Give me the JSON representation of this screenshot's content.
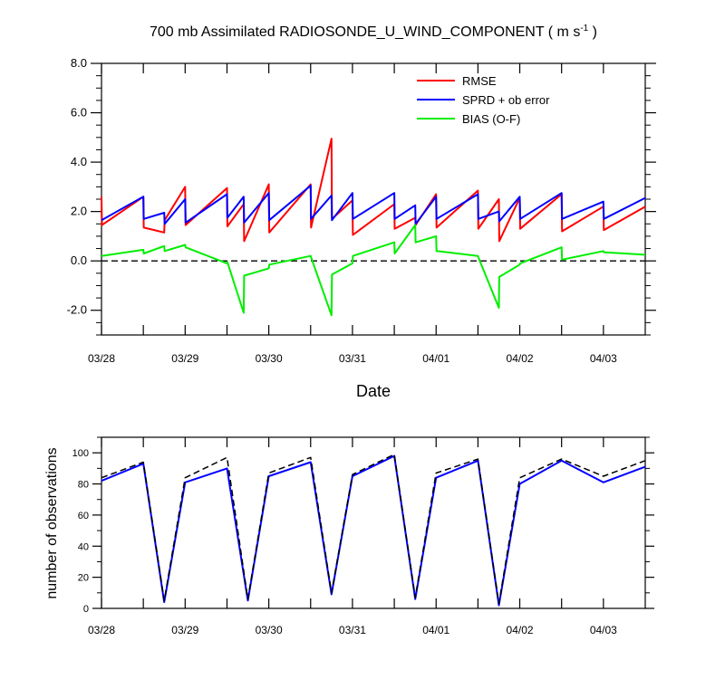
{
  "chart_data": [
    {
      "type": "line",
      "title": "700 mb Assimilated RADIOSONDE_U_WIND_COMPONENT ( m s",
      "title_unit_sup": "-1",
      "title_close": " )",
      "xlabel": "Date",
      "ylabel": "",
      "ylim": [
        -3,
        8
      ],
      "xlim": [
        0,
        6.5
      ],
      "x_ticks": [
        {
          "x": 0,
          "label": "03/28"
        },
        {
          "x": 1,
          "label": "03/29"
        },
        {
          "x": 2,
          "label": "03/30"
        },
        {
          "x": 3,
          "label": "03/31"
        },
        {
          "x": 4,
          "label": "04/01"
        },
        {
          "x": 5,
          "label": "04/02"
        },
        {
          "x": 6,
          "label": "04/03"
        }
      ],
      "y_ticks": [
        {
          "y": -2,
          "label": "-2.0"
        },
        {
          "y": 0,
          "label": "0.0"
        },
        {
          "y": 2,
          "label": "2.0"
        },
        {
          "y": 4,
          "label": "4.0"
        },
        {
          "y": 6,
          "label": "6.0"
        },
        {
          "y": 8,
          "label": "8.0"
        }
      ],
      "zero_line": true,
      "legend_position": "top-right",
      "series": [
        {
          "name": "RMSE",
          "color": "#ff0000",
          "points": [
            [
              0,
              2.6
            ],
            [
              0.005,
              1.45
            ],
            [
              0.5,
              2.6
            ],
            [
              0.505,
              1.35
            ],
            [
              0.75,
              1.15
            ],
            [
              0.755,
              1.65
            ],
            [
              1,
              3.0
            ],
            [
              1.005,
              1.45
            ],
            [
              1.5,
              2.95
            ],
            [
              1.505,
              1.4
            ],
            [
              1.7,
              2.3
            ],
            [
              1.705,
              0.8
            ],
            [
              2,
              3.1
            ],
            [
              2.005,
              1.15
            ],
            [
              2.5,
              3.1
            ],
            [
              2.505,
              1.35
            ],
            [
              2.75,
              4.95
            ],
            [
              2.755,
              1.7
            ],
            [
              3,
              2.45
            ],
            [
              3.005,
              1.05
            ],
            [
              3.5,
              2.3
            ],
            [
              3.505,
              1.3
            ],
            [
              3.75,
              1.75
            ],
            [
              3.755,
              1.45
            ],
            [
              4,
              2.7
            ],
            [
              4.005,
              1.35
            ],
            [
              4.5,
              2.85
            ],
            [
              4.505,
              1.3
            ],
            [
              4.75,
              2.5
            ],
            [
              4.755,
              0.8
            ],
            [
              5,
              2.55
            ],
            [
              5.005,
              1.3
            ],
            [
              5.5,
              2.7
            ],
            [
              5.505,
              1.2
            ],
            [
              6,
              2.2
            ],
            [
              6.005,
              1.25
            ],
            [
              6.5,
              2.2
            ]
          ]
        },
        {
          "name": "SPRD + ob error",
          "color": "#0000ff",
          "points": [
            [
              0,
              1.65
            ],
            [
              0.5,
              2.6
            ],
            [
              0.505,
              1.7
            ],
            [
              0.75,
              1.95
            ],
            [
              0.755,
              1.5
            ],
            [
              1,
              2.5
            ],
            [
              1.005,
              1.55
            ],
            [
              1.5,
              2.7
            ],
            [
              1.505,
              1.75
            ],
            [
              1.7,
              2.6
            ],
            [
              1.705,
              1.55
            ],
            [
              2,
              2.75
            ],
            [
              2.005,
              1.65
            ],
            [
              2.5,
              3.05
            ],
            [
              2.505,
              1.7
            ],
            [
              2.75,
              2.65
            ],
            [
              2.755,
              1.65
            ],
            [
              3,
              2.75
            ],
            [
              3.005,
              1.7
            ],
            [
              3.5,
              2.75
            ],
            [
              3.505,
              1.7
            ],
            [
              3.75,
              2.25
            ],
            [
              3.755,
              1.5
            ],
            [
              4,
              2.6
            ],
            [
              4.005,
              1.7
            ],
            [
              4.5,
              2.7
            ],
            [
              4.505,
              1.7
            ],
            [
              4.75,
              2.0
            ],
            [
              4.755,
              1.6
            ],
            [
              5,
              2.6
            ],
            [
              5.005,
              1.7
            ],
            [
              5.5,
              2.75
            ],
            [
              5.505,
              1.7
            ],
            [
              6,
              2.4
            ],
            [
              6.005,
              1.7
            ],
            [
              6.5,
              2.55
            ]
          ]
        },
        {
          "name": "BIAS (O-F)",
          "color": "#00ee00",
          "points": [
            [
              0,
              0.2
            ],
            [
              0.5,
              0.45
            ],
            [
              0.505,
              0.3
            ],
            [
              0.75,
              0.6
            ],
            [
              0.755,
              0.4
            ],
            [
              1,
              0.65
            ],
            [
              1.005,
              0.55
            ],
            [
              1.5,
              -0.1
            ],
            [
              1.505,
              -0.05
            ],
            [
              1.7,
              -2.1
            ],
            [
              1.705,
              -0.6
            ],
            [
              2,
              -0.3
            ],
            [
              2.005,
              -0.15
            ],
            [
              2.5,
              0.2
            ],
            [
              2.505,
              0.15
            ],
            [
              2.75,
              -2.2
            ],
            [
              2.755,
              -0.55
            ],
            [
              3,
              -0.1
            ],
            [
              3.005,
              0.2
            ],
            [
              3.5,
              0.75
            ],
            [
              3.505,
              0.3
            ],
            [
              3.75,
              1.45
            ],
            [
              3.755,
              0.75
            ],
            [
              4,
              1.0
            ],
            [
              4.005,
              0.4
            ],
            [
              4.5,
              0.2
            ],
            [
              4.505,
              0.15
            ],
            [
              4.75,
              -1.9
            ],
            [
              4.755,
              -0.65
            ],
            [
              5,
              -0.15
            ],
            [
              5.005,
              -0.1
            ],
            [
              5.5,
              0.55
            ],
            [
              5.505,
              0.05
            ],
            [
              6,
              0.4
            ],
            [
              6.005,
              0.35
            ],
            [
              6.5,
              0.25
            ]
          ]
        }
      ]
    },
    {
      "type": "line",
      "ylabel": "number of observations",
      "xlabel": "",
      "ylim": [
        0,
        110
      ],
      "xlim": [
        0,
        6.5
      ],
      "x_ticks": [
        {
          "x": 0,
          "label": "03/28"
        },
        {
          "x": 1,
          "label": "03/29"
        },
        {
          "x": 2,
          "label": "03/30"
        },
        {
          "x": 3,
          "label": "03/31"
        },
        {
          "x": 4,
          "label": "04/01"
        },
        {
          "x": 5,
          "label": "04/02"
        },
        {
          "x": 6,
          "label": "04/03"
        }
      ],
      "y_ticks": [
        {
          "y": 0,
          "label": "0"
        },
        {
          "y": 20,
          "label": "20"
        },
        {
          "y": 40,
          "label": "40"
        },
        {
          "y": 60,
          "label": "60"
        },
        {
          "y": 80,
          "label": "80"
        },
        {
          "y": 100,
          "label": "100"
        }
      ],
      "series": [
        {
          "style": "solid",
          "color": "#0000ff",
          "points": [
            [
              0,
              82
            ],
            [
              0.5,
              93
            ],
            [
              0.75,
              4
            ],
            [
              1,
              81
            ],
            [
              1.5,
              90
            ],
            [
              1.75,
              5
            ],
            [
              2,
              85
            ],
            [
              2.5,
              94
            ],
            [
              2.75,
              9
            ],
            [
              3,
              85
            ],
            [
              3.5,
              98
            ],
            [
              3.75,
              6
            ],
            [
              4,
              84
            ],
            [
              4.5,
              95
            ],
            [
              4.75,
              2
            ],
            [
              5,
              80
            ],
            [
              5.5,
              95
            ],
            [
              6,
              81
            ],
            [
              6.5,
              91
            ]
          ]
        },
        {
          "style": "dashed",
          "color": "#000000",
          "points": [
            [
              0,
              84
            ],
            [
              0.5,
              94
            ],
            [
              0.75,
              5
            ],
            [
              1,
              84
            ],
            [
              1.5,
              97
            ],
            [
              1.75,
              6
            ],
            [
              2,
              87
            ],
            [
              2.5,
              97
            ],
            [
              2.75,
              10
            ],
            [
              3,
              86
            ],
            [
              3.5,
              99
            ],
            [
              3.75,
              7
            ],
            [
              4,
              87
            ],
            [
              4.5,
              96
            ],
            [
              4.75,
              3
            ],
            [
              5,
              84
            ],
            [
              5.5,
              96
            ],
            [
              6,
              85
            ],
            [
              6.5,
              95
            ]
          ]
        }
      ]
    }
  ]
}
